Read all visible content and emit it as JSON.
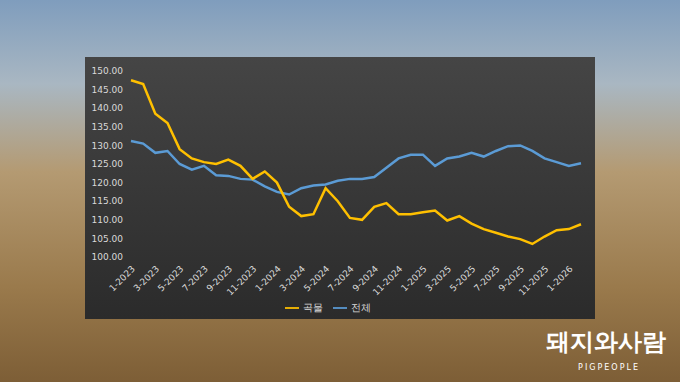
{
  "chart_data": {
    "type": "line",
    "categories": [
      "1-2023",
      null,
      "3-2023",
      null,
      "5-2023",
      null,
      "7-2023",
      null,
      "9-2023",
      null,
      "11-2023",
      null,
      "1-2024",
      null,
      "3-2024",
      null,
      "5-2024",
      null,
      "7-2024",
      null,
      "9-2024",
      null,
      "11-2024",
      null,
      "1-2025",
      null,
      "3-2025",
      null,
      "5-2025",
      null,
      "7-2025",
      null,
      "9-2025",
      null,
      "11-2025",
      null,
      "1-2026",
      null
    ],
    "series": [
      {
        "name": "전체",
        "color": "#5b9bd5",
        "values": [
          131.2,
          130.5,
          128,
          128.5,
          125,
          123.5,
          124.5,
          122,
          121.8,
          121,
          120.8,
          119,
          117.5,
          116.8,
          118.5,
          119.2,
          119.5,
          120.5,
          121,
          121,
          121.5,
          124,
          126.5,
          127.5,
          127.5,
          124.5,
          126.5,
          127,
          128,
          127,
          128.5,
          129.8,
          130,
          128.5,
          126.5,
          125.5,
          124.5,
          125.2
        ]
      },
      {
        "name": "곡물",
        "color": "#ffc000",
        "values": [
          147.5,
          146.5,
          138.5,
          136,
          129,
          126.5,
          125.5,
          125,
          126.2,
          124.5,
          121,
          123,
          120,
          113.5,
          111,
          111.5,
          118.5,
          115,
          110.5,
          110,
          113.5,
          114.5,
          111.5,
          111.5,
          112,
          112.5,
          109.8,
          111,
          109,
          107.5,
          106.5,
          105.5,
          104.8,
          103.5,
          105.5,
          107.2,
          107.5,
          108.8
        ]
      }
    ],
    "ylim": [
      100,
      150
    ],
    "yticks": [
      {
        "value": 100,
        "label": "100.00"
      },
      {
        "value": 105,
        "label": "105.00"
      },
      {
        "value": 110,
        "label": "110.00"
      },
      {
        "value": 115,
        "label": "115.00"
      },
      {
        "value": 120,
        "label": "120.00"
      },
      {
        "value": 125,
        "label": "125.00"
      },
      {
        "value": 130,
        "label": "130.00"
      },
      {
        "value": 135,
        "label": "135.00"
      },
      {
        "value": 140,
        "label": "140.00"
      },
      {
        "value": 145,
        "label": "145.00"
      },
      {
        "value": 150,
        "label": "150.00"
      }
    ],
    "grid": false,
    "legend": "bottom",
    "annotations": [
      "돼지와사람",
      "PIGPEOPLE"
    ]
  }
}
